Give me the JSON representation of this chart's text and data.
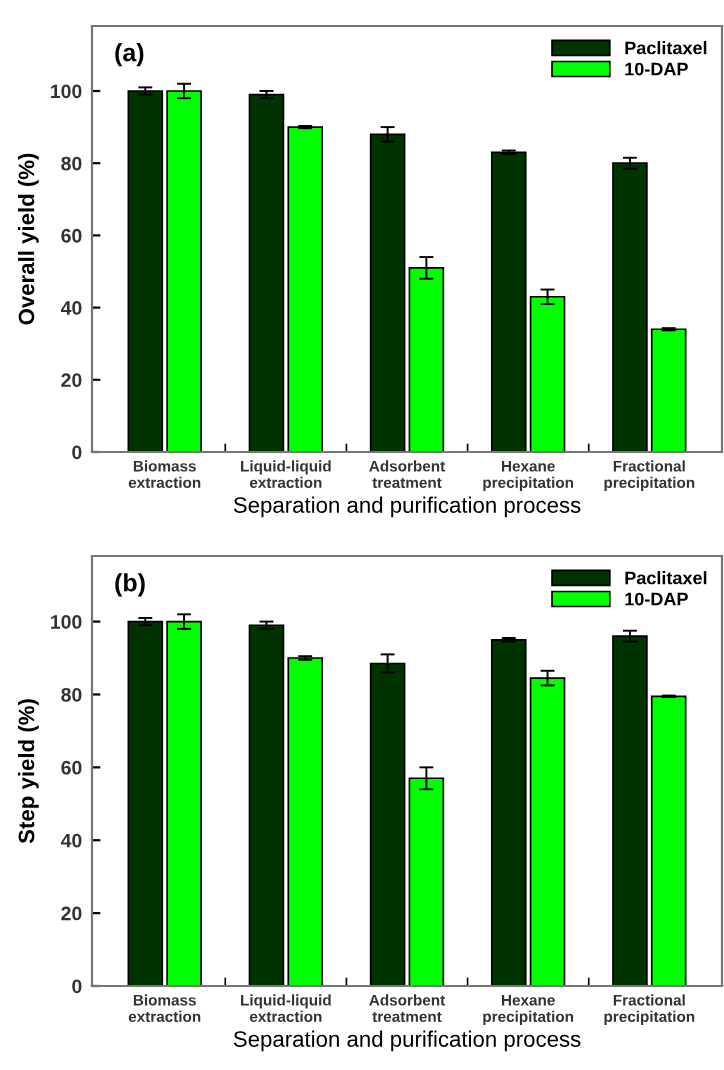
{
  "chart_data": [
    {
      "type": "bar",
      "xlabel": "Separation and purification process",
      "ylabel": "Overall yield (%)",
      "annotations": [
        "(a)"
      ],
      "categories": [
        "Biomass\nextraction",
        "Liquid-liquid\nextraction",
        "Adsorbent\ntreatment",
        "Hexane\nprecipitation",
        "Fractional\nprecipitation"
      ],
      "series": [
        {
          "name": "Paclitaxel",
          "color": "#003300",
          "values": [
            100,
            99,
            88,
            83,
            80
          ],
          "errors": [
            1,
            1,
            2,
            0.5,
            1.5
          ]
        },
        {
          "name": "10-DAP",
          "color": "#00ff00",
          "values": [
            100,
            90,
            51,
            43,
            34
          ],
          "errors": [
            2,
            0.3,
            3,
            2,
            0.3
          ]
        }
      ],
      "ylim": [
        0,
        118
      ],
      "yticks": [
        0,
        20,
        40,
        60,
        80,
        100
      ],
      "legend": "top right",
      "grid": false
    },
    {
      "type": "bar",
      "xlabel": "Separation and purification process",
      "ylabel": "Step yield (%)",
      "annotations": [
        "(b)"
      ],
      "categories": [
        "Biomass\nextraction",
        "Liquid-liquid\nextraction",
        "Adsorbent\ntreatment",
        "Hexane\nprecipitation",
        "Fractional\nprecipitation"
      ],
      "series": [
        {
          "name": "Paclitaxel",
          "color": "#003300",
          "values": [
            100,
            99,
            88.5,
            95,
            96
          ],
          "errors": [
            1,
            1,
            2.5,
            0.5,
            1.5
          ]
        },
        {
          "name": "10-DAP",
          "color": "#00ff00",
          "values": [
            100,
            90,
            57,
            84.5,
            79.5
          ],
          "errors": [
            2,
            0.5,
            3,
            2,
            0.2
          ]
        }
      ],
      "ylim": [
        0,
        118
      ],
      "yticks": [
        0,
        20,
        40,
        60,
        80,
        100
      ],
      "legend": "top right",
      "grid": false
    }
  ]
}
